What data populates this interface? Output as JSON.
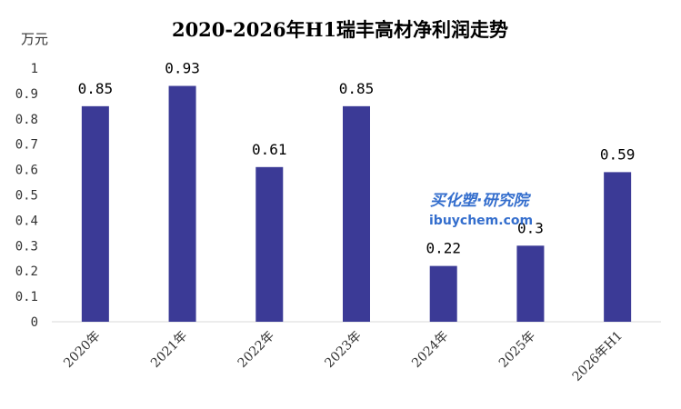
{
  "chart_data": {
    "type": "bar",
    "title": "2020-2026年H1瑞丰高材净利润走势",
    "unit_label": "万元",
    "categories": [
      "2020年",
      "2021年",
      "2022年",
      "2023年",
      "2024年",
      "2025年",
      "2026年H1"
    ],
    "values": [
      0.85,
      0.93,
      0.61,
      0.85,
      0.22,
      0.3,
      0.59
    ],
    "data_labels": [
      "0.85",
      "0.93",
      "0.61",
      "0.85",
      "0.22",
      "0.3",
      "0.59"
    ],
    "ylim": [
      0,
      1
    ],
    "yticks": [
      "0",
      "0.1",
      "0.2",
      "0.3",
      "0.4",
      "0.5",
      "0.6",
      "0.7",
      "0.8",
      "0.9",
      "1"
    ],
    "bar_color": "#3b3a96",
    "grid": false,
    "legend": "none"
  },
  "watermark": {
    "brand": "买化塑·研究院",
    "site": "ibuychem.com"
  }
}
